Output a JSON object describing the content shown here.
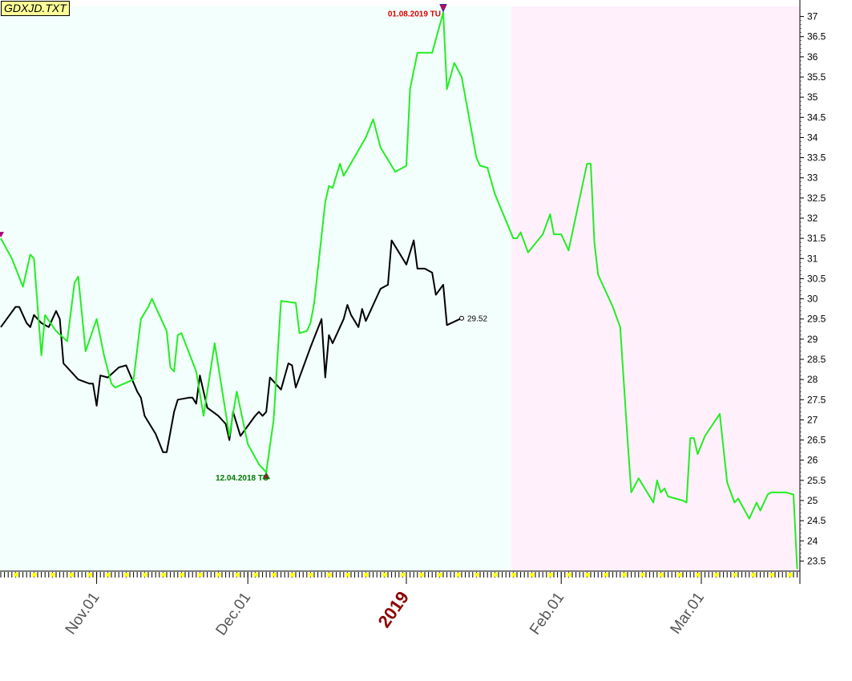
{
  "title": "GDXJD.TXT",
  "colors": {
    "green_series": "#22ee22",
    "black_series": "#000000",
    "bg_left": "#f3fffc",
    "bg_right": "#fff0fc",
    "high_annotation": "#dd0000",
    "low_annotation": "#007700",
    "year_label": "#8b0000",
    "tick_marker": "#ffff00"
  },
  "chart_data": {
    "type": "line",
    "title": "GDXJD.TXT",
    "xlabel": "",
    "ylabel": "",
    "ylim": [
      23.25,
      37.25
    ],
    "y_ticks": [
      "37",
      "36.5",
      "36",
      "35.5",
      "35",
      "34.5",
      "34",
      "33.5",
      "33",
      "32.5",
      "32",
      "31.5",
      "31",
      "30.5",
      "30",
      "29.5",
      "29",
      "28.5",
      "28",
      "27.5",
      "27",
      "26.5",
      "26",
      "25.5",
      "25",
      "24.5",
      "24",
      "23.5"
    ],
    "x_tick_labels": [
      {
        "label": "Nov.01",
        "year_mark": false
      },
      {
        "label": "Dec.01",
        "year_mark": false
      },
      {
        "label": "2019",
        "year_mark": true
      },
      {
        "label": "Feb.01",
        "year_mark": false
      },
      {
        "label": "Mar.01",
        "year_mark": false
      }
    ],
    "grid": false,
    "series": [
      {
        "key": "green",
        "points": [
          [
            0,
            31.5
          ],
          [
            3,
            31.0
          ],
          [
            6,
            30.3
          ],
          [
            8,
            31.1
          ],
          [
            9,
            31.0
          ],
          [
            11,
            28.6
          ],
          [
            12,
            29.6
          ],
          [
            15,
            29.2
          ],
          [
            18,
            28.95
          ],
          [
            20,
            30.4
          ],
          [
            21,
            30.55
          ],
          [
            23,
            28.7
          ],
          [
            26,
            29.5
          ],
          [
            28,
            28.6
          ],
          [
            30,
            27.9
          ],
          [
            31,
            27.8
          ],
          [
            36,
            28.0
          ],
          [
            38,
            29.5
          ],
          [
            40,
            29.8
          ],
          [
            41,
            30.0
          ],
          [
            45,
            29.2
          ],
          [
            46,
            28.3
          ],
          [
            47,
            28.2
          ],
          [
            48,
            29.1
          ],
          [
            49,
            29.15
          ],
          [
            53,
            28.2
          ],
          [
            55,
            27.1
          ],
          [
            58,
            28.9
          ],
          [
            62,
            26.6
          ],
          [
            64,
            27.7
          ],
          [
            67,
            26.4
          ],
          [
            70,
            25.9
          ],
          [
            72,
            25.7
          ],
          [
            74,
            27.0
          ],
          [
            76,
            29.95
          ],
          [
            80,
            29.9
          ],
          [
            81,
            29.15
          ],
          [
            83,
            29.2
          ],
          [
            84,
            29.4
          ],
          [
            85,
            29.9
          ],
          [
            88,
            32.4
          ],
          [
            89,
            32.8
          ],
          [
            90,
            32.75
          ],
          [
            92,
            33.35
          ],
          [
            93,
            33.05
          ],
          [
            99,
            34.0
          ],
          [
            101,
            34.45
          ],
          [
            103,
            33.75
          ],
          [
            107,
            33.15
          ],
          [
            110,
            33.3
          ],
          [
            111,
            35.2
          ],
          [
            113,
            36.1
          ],
          [
            117,
            36.1
          ],
          [
            120,
            37.1
          ],
          [
            121,
            35.2
          ],
          [
            123,
            35.85
          ],
          [
            125,
            35.5
          ],
          [
            129,
            33.5
          ],
          [
            130,
            33.3
          ],
          [
            132,
            33.25
          ],
          [
            134,
            32.6
          ],
          [
            139,
            31.5
          ],
          [
            140,
            31.5
          ],
          [
            141,
            31.65
          ],
          [
            143,
            31.15
          ],
          [
            147,
            31.6
          ],
          [
            149,
            32.1
          ],
          [
            150,
            31.6
          ],
          [
            152,
            31.6
          ],
          [
            154,
            31.2
          ],
          [
            159,
            33.35
          ],
          [
            160,
            33.35
          ],
          [
            161,
            31.4
          ],
          [
            162,
            30.6
          ],
          [
            166,
            29.8
          ],
          [
            168,
            29.3
          ],
          [
            170,
            26.5
          ],
          [
            171,
            25.2
          ],
          [
            173,
            25.55
          ],
          [
            177,
            24.95
          ],
          [
            178,
            25.5
          ],
          [
            179,
            25.2
          ],
          [
            180,
            25.3
          ],
          [
            181,
            25.1
          ],
          [
            185,
            25.0
          ],
          [
            186,
            24.95
          ],
          [
            187,
            26.55
          ],
          [
            188,
            26.55
          ],
          [
            189,
            26.15
          ],
          [
            191,
            26.6
          ],
          [
            195,
            27.15
          ],
          [
            197,
            25.45
          ],
          [
            199,
            24.95
          ],
          [
            200,
            25.05
          ],
          [
            203,
            24.55
          ],
          [
            205,
            24.95
          ],
          [
            206,
            24.75
          ],
          [
            208,
            25.15
          ],
          [
            209,
            25.2
          ],
          [
            213,
            25.2
          ],
          [
            215,
            25.15
          ],
          [
            216,
            23.3
          ]
        ]
      },
      {
        "key": "black",
        "points": [
          [
            0,
            29.3
          ],
          [
            4,
            29.8
          ],
          [
            5,
            29.8
          ],
          [
            7,
            29.4
          ],
          [
            8,
            29.3
          ],
          [
            9,
            29.6
          ],
          [
            11,
            29.4
          ],
          [
            13,
            29.3
          ],
          [
            15,
            29.7
          ],
          [
            16,
            29.5
          ],
          [
            17,
            28.4
          ],
          [
            21,
            28.0
          ],
          [
            24,
            27.9
          ],
          [
            25,
            27.9
          ],
          [
            26,
            27.35
          ],
          [
            27,
            28.1
          ],
          [
            29,
            28.05
          ],
          [
            32,
            28.3
          ],
          [
            34,
            28.35
          ],
          [
            37,
            27.7
          ],
          [
            38,
            27.55
          ],
          [
            39,
            27.1
          ],
          [
            42,
            26.65
          ],
          [
            44,
            26.2
          ],
          [
            45,
            26.2
          ],
          [
            47,
            27.2
          ],
          [
            48,
            27.5
          ],
          [
            51,
            27.55
          ],
          [
            52,
            27.55
          ],
          [
            53,
            27.4
          ],
          [
            54,
            28.1
          ],
          [
            56,
            27.3
          ],
          [
            59,
            27.1
          ],
          [
            61,
            26.9
          ],
          [
            62,
            26.5
          ],
          [
            63,
            27.2
          ],
          [
            65,
            26.6
          ],
          [
            69,
            27.1
          ],
          [
            70,
            27.2
          ],
          [
            71,
            27.1
          ],
          [
            72,
            27.2
          ],
          [
            73,
            28.05
          ],
          [
            76,
            27.75
          ],
          [
            78,
            28.4
          ],
          [
            79,
            28.35
          ],
          [
            80,
            27.8
          ],
          [
            84,
            28.8
          ],
          [
            87,
            29.5
          ],
          [
            88,
            28.05
          ],
          [
            89,
            29.1
          ],
          [
            90,
            28.9
          ],
          [
            93,
            29.5
          ],
          [
            94,
            29.85
          ],
          [
            95,
            29.6
          ],
          [
            97,
            29.3
          ],
          [
            98,
            29.75
          ],
          [
            99,
            29.45
          ],
          [
            103,
            30.25
          ],
          [
            105,
            30.35
          ],
          [
            106,
            31.45
          ],
          [
            110,
            30.85
          ],
          [
            112,
            31.45
          ],
          [
            113,
            30.75
          ],
          [
            115,
            30.75
          ],
          [
            117,
            30.65
          ],
          [
            118,
            30.1
          ],
          [
            120,
            30.35
          ],
          [
            121,
            29.35
          ],
          [
            125,
            29.52
          ]
        ],
        "last_value": "29.52"
      }
    ],
    "annotations": [
      {
        "text": "01.08.2019 TU",
        "kind": "high",
        "x": 120,
        "y": 37.1
      },
      {
        "text": "12.04.2018 TU",
        "kind": "low",
        "x": 72,
        "y": 25.7
      }
    ]
  }
}
